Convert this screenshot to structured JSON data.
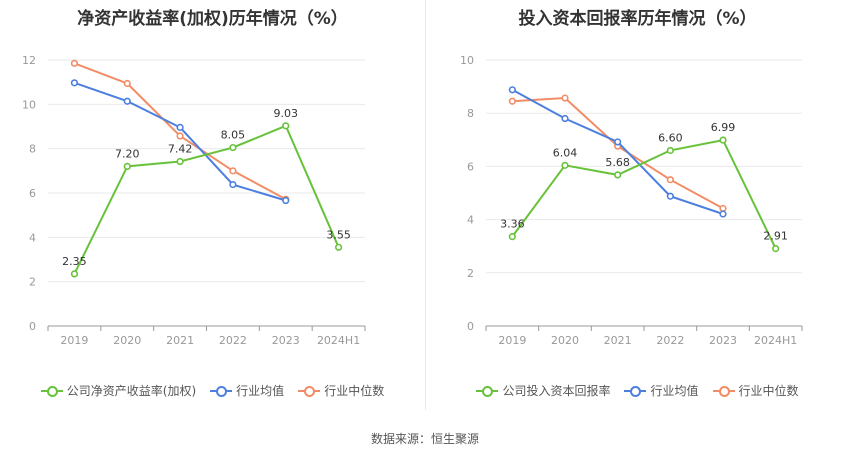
{
  "colors": {
    "company": "#67c23a",
    "industry_avg": "#4c7fe0",
    "industry_median": "#f28c65",
    "grid": "#e9e9e9",
    "axis": "#999999"
  },
  "source": "数据来源：恒生聚源",
  "chart_data": [
    {
      "type": "line",
      "title": "净资产收益率(加权)历年情况（%）",
      "categories": [
        "2019",
        "2020",
        "2021",
        "2022",
        "2023",
        "2024H1"
      ],
      "ylim": [
        0,
        12
      ],
      "yticks": [
        "0",
        "2",
        "4",
        "6",
        "8",
        "10",
        "12"
      ],
      "grid": true,
      "legend_position": "bottom",
      "series": [
        {
          "name": "公司净资产收益率(加权)",
          "color_key": "company",
          "values": [
            2.35,
            7.2,
            7.42,
            8.05,
            9.03,
            3.55
          ],
          "labels": [
            "2.35",
            "7.20",
            "7.42",
            "8.05",
            "9.03",
            "3.55"
          ]
        },
        {
          "name": "行业均值",
          "color_key": "industry_avg",
          "values": [
            10.97,
            10.14,
            8.96,
            6.38,
            5.66,
            null
          ]
        },
        {
          "name": "行业中位数",
          "color_key": "industry_median",
          "values": [
            11.85,
            10.94,
            8.57,
            7.0,
            5.72,
            null
          ]
        }
      ]
    },
    {
      "type": "line",
      "title": "投入资本回报率历年情况（%）",
      "categories": [
        "2019",
        "2020",
        "2021",
        "2022",
        "2023",
        "2024H1"
      ],
      "ylim": [
        0,
        10
      ],
      "yticks": [
        "0",
        "2",
        "4",
        "6",
        "8",
        "10"
      ],
      "grid": true,
      "legend_position": "bottom",
      "series": [
        {
          "name": "公司投入资本回报率",
          "color_key": "company",
          "values": [
            3.36,
            6.04,
            5.68,
            6.6,
            6.99,
            2.91
          ],
          "labels": [
            "3.36",
            "6.04",
            "5.68",
            "6.60",
            "6.99",
            "2.91"
          ]
        },
        {
          "name": "行业均值",
          "color_key": "industry_avg",
          "values": [
            8.88,
            7.8,
            6.92,
            4.88,
            4.21,
            null
          ]
        },
        {
          "name": "行业中位数",
          "color_key": "industry_median",
          "values": [
            8.45,
            8.57,
            6.76,
            5.5,
            4.42,
            null
          ]
        }
      ]
    }
  ]
}
